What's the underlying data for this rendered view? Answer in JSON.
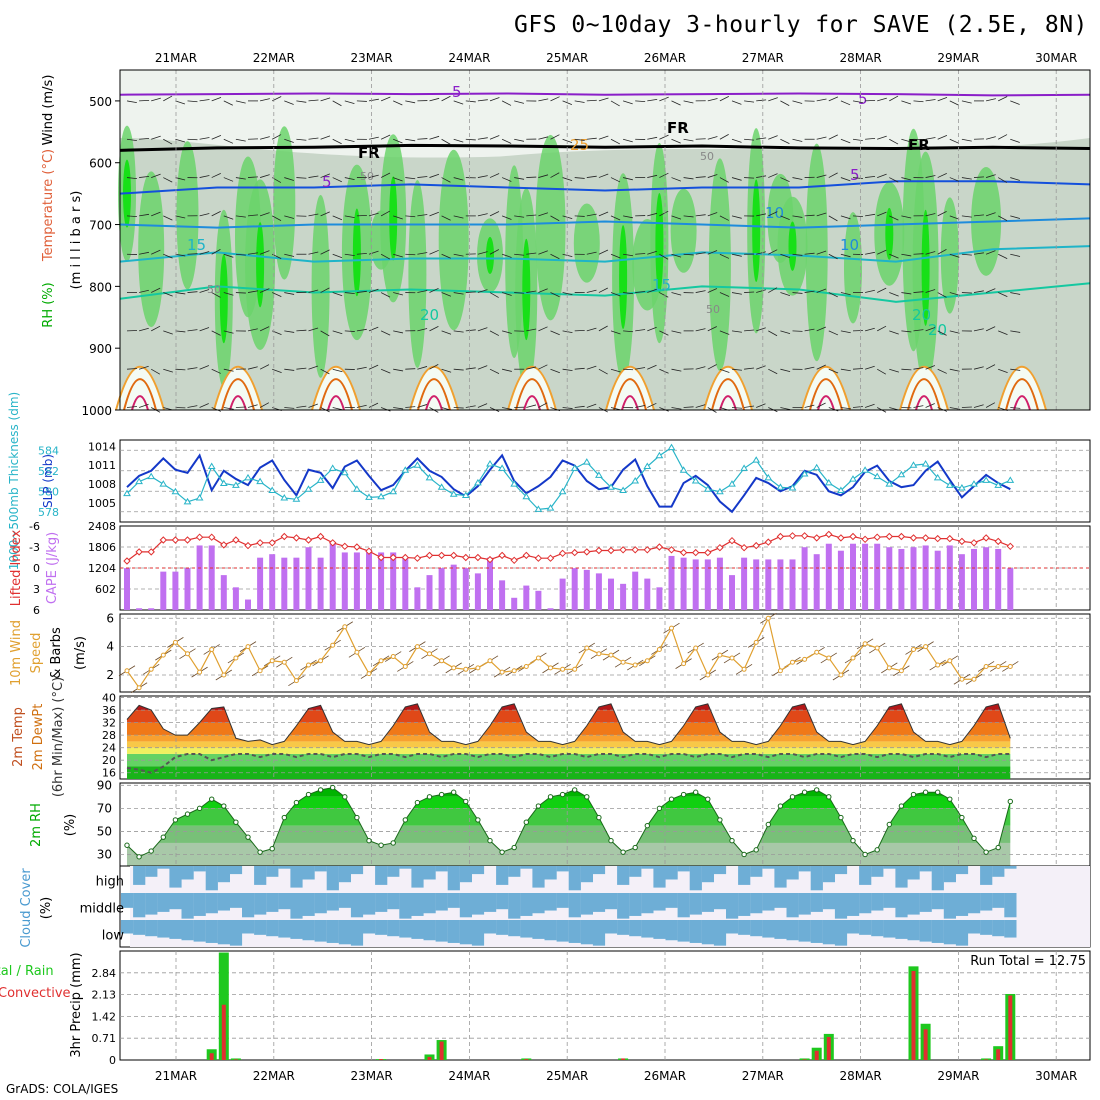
{
  "title": "GFS 0~10day 3-hourly for SAVE (2.5E, 8N)",
  "credit": "GrADS: COLA/IGES",
  "chart_data": {
    "type": "meteogram",
    "dates": [
      "21MAR",
      "22MAR",
      "23MAR",
      "24MAR",
      "25MAR",
      "26MAR",
      "27MAR",
      "28MAR",
      "29MAR",
      "30MAR"
    ],
    "panels": {
      "upper_air": {
        "ylabel_parts": [
          "RH (%)",
          "Temperature (°C)",
          "Wind (m/s)"
        ],
        "ylabel_unit": "(m i l l i b a r s)",
        "yticks": [
          "500",
          "600",
          "700",
          "800",
          "900",
          "1000"
        ],
        "ylim": [
          1000,
          450
        ],
        "contour_labels": [
          "5",
          "5",
          "5",
          "5",
          "FR",
          "FR",
          "FR",
          "10",
          "10",
          "15",
          "15",
          "20",
          "20",
          "20",
          "25",
          "50",
          "50",
          "50",
          "50"
        ],
        "levels": [
          {
            "name": "5C isotherm",
            "color": "#8a1ec8",
            "pressure": [
              490,
              489,
              488,
              489,
              488,
              490,
              489,
              488,
              489,
              491,
              490
            ]
          },
          {
            "name": "FR freezing level",
            "color": "#000000",
            "pressure": [
              580,
              576,
              575,
              572,
              573,
              575,
              573,
              576,
              577,
              575,
              577
            ]
          },
          {
            "name": "5C isotherm lower",
            "color": "#1450dc",
            "pressure": [
              650,
              640,
              640,
              635,
              640,
              645,
              640,
              640,
              630,
              630,
              635
            ]
          },
          {
            "name": "10C isotherm",
            "color": "#1e8cdc",
            "pressure": [
              700,
              705,
              700,
              700,
              700,
              695,
              700,
              705,
              700,
              695,
              690
            ]
          },
          {
            "name": "15C isotherm",
            "color": "#1eb4c8",
            "pressure": [
              760,
              745,
              760,
              755,
              755,
              760,
              745,
              750,
              760,
              740,
              735
            ]
          },
          {
            "name": "20C isotherm",
            "color": "#14c8a0",
            "pressure": [
              820,
              800,
              810,
              805,
              810,
              815,
              800,
              805,
              825,
              810,
              795
            ]
          }
        ]
      },
      "thickness_slp": {
        "left_label": "1000~500mb Thickness (dm)",
        "right_label": "SLP (mb)",
        "left_ticks": [
          "584",
          "582",
          "580",
          "578"
        ],
        "right_ticks": [
          "1014",
          "1011",
          "1008",
          "1005"
        ],
        "thickness_dm": [
          580.4,
          581.5,
          582.0,
          583.2,
          582.1,
          581.8,
          583.5,
          580.1,
          582.0,
          581.2,
          580.6,
          582.3,
          583.0,
          581.1,
          579.6,
          582.1,
          581.8,
          580.3,
          582.4,
          583.0,
          581.5,
          580.1,
          580.6,
          582.0,
          583.2,
          582.0,
          581.4,
          580.2,
          579.5,
          580.5,
          582.1,
          583.5,
          581.0,
          579.8,
          580.5,
          581.4,
          583.0,
          582.5,
          581.0,
          580.2,
          580.4,
          582.1,
          583.1,
          580.5,
          578.5,
          578.5,
          580.8,
          581.5,
          580.6,
          579.0,
          578.0,
          579.6,
          581.3,
          580.8,
          580.0,
          580.5,
          582.0,
          581.6,
          580.0,
          579.6,
          580.4,
          581.9,
          582.5,
          581.0,
          580.4,
          580.6,
          582.0,
          582.9,
          581.1,
          579.4,
          580.5,
          581.6,
          580.8,
          580.2
        ],
        "slp_mb": [
          1006.5,
          1008.4,
          1009.2,
          1008.0,
          1006.8,
          1005.2,
          1005.8,
          1010.8,
          1008.1,
          1007.8,
          1009.0,
          1008.4,
          1007.0,
          1005.8,
          1005.6,
          1007.2,
          1008.6,
          1010.5,
          1009.8,
          1007.2,
          1005.9,
          1006.0,
          1006.8,
          1010.2,
          1011.0,
          1009.0,
          1007.5,
          1006.4,
          1006.2,
          1008.2,
          1011.2,
          1010.5,
          1008.0,
          1006.0,
          1004.0,
          1004.2,
          1006.8,
          1010.5,
          1011.5,
          1009.4,
          1007.5,
          1007.0,
          1008.5,
          1010.8,
          1012.5,
          1013.8,
          1010.2,
          1008.5,
          1007.2,
          1006.8,
          1008.0,
          1010.5,
          1011.8,
          1009.0,
          1007.5,
          1007.4,
          1009.6,
          1010.6,
          1008.2,
          1007.0,
          1008.8,
          1010.2,
          1009.2,
          1008.0,
          1009.5,
          1011.0,
          1011.2,
          1009.0,
          1007.8,
          1007.4,
          1008.0,
          1008.6,
          1007.8,
          1008.6
        ]
      },
      "lifted_cape": {
        "left_label": "Lifted Index",
        "right_label": "CAPE (J/kg)",
        "left_ticks": [
          "-6",
          "-3",
          "0",
          "3",
          "6"
        ],
        "right_ticks": [
          "2408",
          "1806",
          "1204",
          "602"
        ],
        "cape": [
          1200,
          50,
          50,
          1100,
          1100,
          1200,
          1850,
          1850,
          1000,
          650,
          300,
          1500,
          1600,
          1500,
          1500,
          1800,
          1500,
          1900,
          1650,
          1650,
          1650,
          1650,
          1650,
          1500,
          650,
          1000,
          1200,
          1300,
          1200,
          1050,
          1500,
          850,
          350,
          700,
          550,
          50,
          900,
          1200,
          1150,
          1050,
          900,
          750,
          1100,
          900,
          650,
          1550,
          1500,
          1450,
          1450,
          1500,
          1000,
          1500,
          1450,
          1450,
          1450,
          1450,
          1800,
          1600,
          1900,
          1700,
          1900,
          1900,
          1900,
          1800,
          1750,
          1800,
          1850,
          1700,
          1850,
          1600,
          1750,
          1800,
          1750,
          1200
        ],
        "lifted_index": [
          -1,
          -2.3,
          -2.3,
          -4,
          -4,
          -4,
          -4.4,
          -4.4,
          -3.3,
          -4,
          -3.2,
          -3.6,
          -3.6,
          -4.5,
          -4.3,
          -4,
          -4.5,
          -3.6,
          -3.1,
          -3,
          -2.4,
          -1.5,
          -1.5,
          -1.5,
          -1.4,
          -1.8,
          -1.8,
          -1.8,
          -1.5,
          -1.5,
          -1.2,
          -1.8,
          -1.1,
          -1.8,
          -1.4,
          -1.4,
          -2.1,
          -2.2,
          -2.3,
          -2.5,
          -2.5,
          -2.6,
          -2.6,
          -2.6,
          -3,
          -2.6,
          -2.2,
          -2.2,
          -2.2,
          -2.9,
          -3.9,
          -2.9,
          -3.2,
          -3.7,
          -4.5,
          -4.6,
          -4.6,
          -4.3,
          -4.8,
          -4.3,
          -4.5,
          -4.1,
          -4.4,
          -4.5,
          -4.5,
          -4.3,
          -4.3,
          -4.2,
          -4.2,
          -3.8,
          -3.6,
          -4.3,
          -3.8,
          -3.1
        ]
      },
      "wind10m": {
        "label": "10m Wind Speed & Barbs",
        "unit": "(m/s)",
        "yticks": [
          "6",
          "4",
          "2"
        ],
        "speed": [
          2.3,
          1.1,
          2.4,
          3.4,
          4.3,
          3.5,
          2.2,
          3.8,
          2.0,
          3.2,
          4.0,
          2.3,
          3.0,
          2.9,
          1.6,
          2.7,
          3.0,
          4.1,
          5.4,
          3.6,
          2.1,
          3.0,
          3.3,
          2.6,
          4.0,
          3.5,
          3.0,
          2.5,
          2.4,
          2.5,
          3.0,
          2.2,
          2.3,
          2.6,
          3.2,
          2.5,
          2.4,
          2.4,
          3.9,
          3.5,
          3.4,
          2.9,
          2.7,
          3.0,
          3.8,
          5.3,
          2.8,
          3.9,
          2.0,
          3.4,
          3.2,
          2.4,
          4.3,
          6.0,
          2.3,
          2.9,
          3.1,
          3.6,
          3.2,
          2.0,
          3.2,
          4.2,
          3.9,
          2.5,
          2.3,
          3.8,
          4.0,
          2.7,
          3.0,
          1.7,
          1.7,
          2.6,
          2.6,
          2.6
        ]
      },
      "temp2m": {
        "label_parts": [
          "2m Temp",
          "2m DewPt",
          "(6hr Min/Max) (°C)"
        ],
        "yticks": [
          "40",
          "36",
          "32",
          "28",
          "24",
          "20",
          "16"
        ],
        "temp": [
          33,
          37.5,
          36,
          30,
          28,
          28,
          32,
          36.5,
          37,
          27,
          26,
          26.5,
          25,
          26,
          31,
          36.5,
          37.5,
          29,
          26,
          26,
          25,
          26,
          31,
          37,
          38,
          29,
          26,
          26,
          25,
          26,
          31,
          37,
          38,
          29,
          26,
          26,
          25,
          26,
          31,
          37,
          38,
          29,
          26,
          26,
          25,
          26,
          31,
          37,
          38,
          29,
          26,
          26,
          25,
          26,
          31,
          37,
          38,
          29,
          26,
          26,
          25,
          26,
          31,
          37,
          38,
          29,
          26,
          26,
          25,
          26,
          31,
          37,
          38,
          27
        ],
        "dewpoint": [
          17.5,
          17,
          16,
          18,
          21,
          22,
          22,
          20,
          21,
          22,
          22,
          21,
          22,
          22,
          21,
          22,
          22,
          21,
          22,
          22,
          21,
          22,
          22,
          21,
          22,
          22,
          21,
          22,
          22,
          21,
          22,
          22,
          21,
          22,
          22,
          21,
          22,
          22,
          21,
          22,
          22,
          21,
          22,
          22,
          21,
          22,
          22,
          21,
          22,
          22,
          21,
          22,
          22,
          21,
          22,
          22,
          21,
          22,
          22,
          21,
          22,
          22,
          21,
          22,
          22,
          21,
          22,
          22,
          21,
          22,
          22,
          21,
          22,
          22
        ]
      },
      "rh2m": {
        "label": "2m RH",
        "unit": "(%)",
        "yticks": [
          "90",
          "70",
          "50",
          "30"
        ],
        "rh": [
          38,
          28,
          33,
          45,
          60,
          65,
          70,
          78,
          72,
          58,
          45,
          32,
          35,
          62,
          75,
          82,
          86,
          88,
          80,
          62,
          42,
          38,
          40,
          60,
          75,
          80,
          82,
          84,
          76,
          60,
          42,
          32,
          36,
          58,
          72,
          80,
          82,
          86,
          80,
          62,
          42,
          32,
          36,
          55,
          70,
          78,
          82,
          84,
          78,
          60,
          42,
          30,
          34,
          56,
          72,
          80,
          84,
          86,
          80,
          62,
          42,
          30,
          34,
          56,
          72,
          82,
          84,
          84,
          78,
          62,
          44,
          32,
          36,
          76
        ]
      },
      "cloud": {
        "label": "Cloud Cover",
        "unit": "(%)",
        "layers": [
          "high",
          "middle",
          "low"
        ]
      },
      "precip": {
        "label_parts": [
          "Total / Rain",
          "Convective"
        ],
        "ylabel": "3hr Precip (mm)",
        "yticks": [
          "2.84",
          "2.13",
          "1.42",
          "0.71",
          "0"
        ],
        "run_total_label": "Run Total = 12.75",
        "events": [
          {
            "slot": 7,
            "total": 0.35,
            "convective": 0.22
          },
          {
            "slot": 8,
            "total": 3.5,
            "convective": 1.8
          },
          {
            "slot": 9,
            "total": 0.05,
            "convective": 0.02
          },
          {
            "slot": 21,
            "total": 0.03,
            "convective": 0.03
          },
          {
            "slot": 25,
            "total": 0.18,
            "convective": 0.1
          },
          {
            "slot": 26,
            "total": 0.65,
            "convective": 0.6
          },
          {
            "slot": 33,
            "total": 0.05,
            "convective": 0.03
          },
          {
            "slot": 41,
            "total": 0.05,
            "convective": 0.05
          },
          {
            "slot": 56,
            "total": 0.05,
            "convective": 0.02
          },
          {
            "slot": 57,
            "total": 0.4,
            "convective": 0.3
          },
          {
            "slot": 58,
            "total": 0.85,
            "convective": 0.75
          },
          {
            "slot": 65,
            "total": 3.05,
            "convective": 2.9
          },
          {
            "slot": 66,
            "total": 1.18,
            "convective": 1.0
          },
          {
            "slot": 71,
            "total": 0.05,
            "convective": 0.02
          },
          {
            "slot": 72,
            "total": 0.45,
            "convective": 0.35
          },
          {
            "slot": 73,
            "total": 2.15,
            "convective": 2.1
          }
        ]
      }
    }
  }
}
